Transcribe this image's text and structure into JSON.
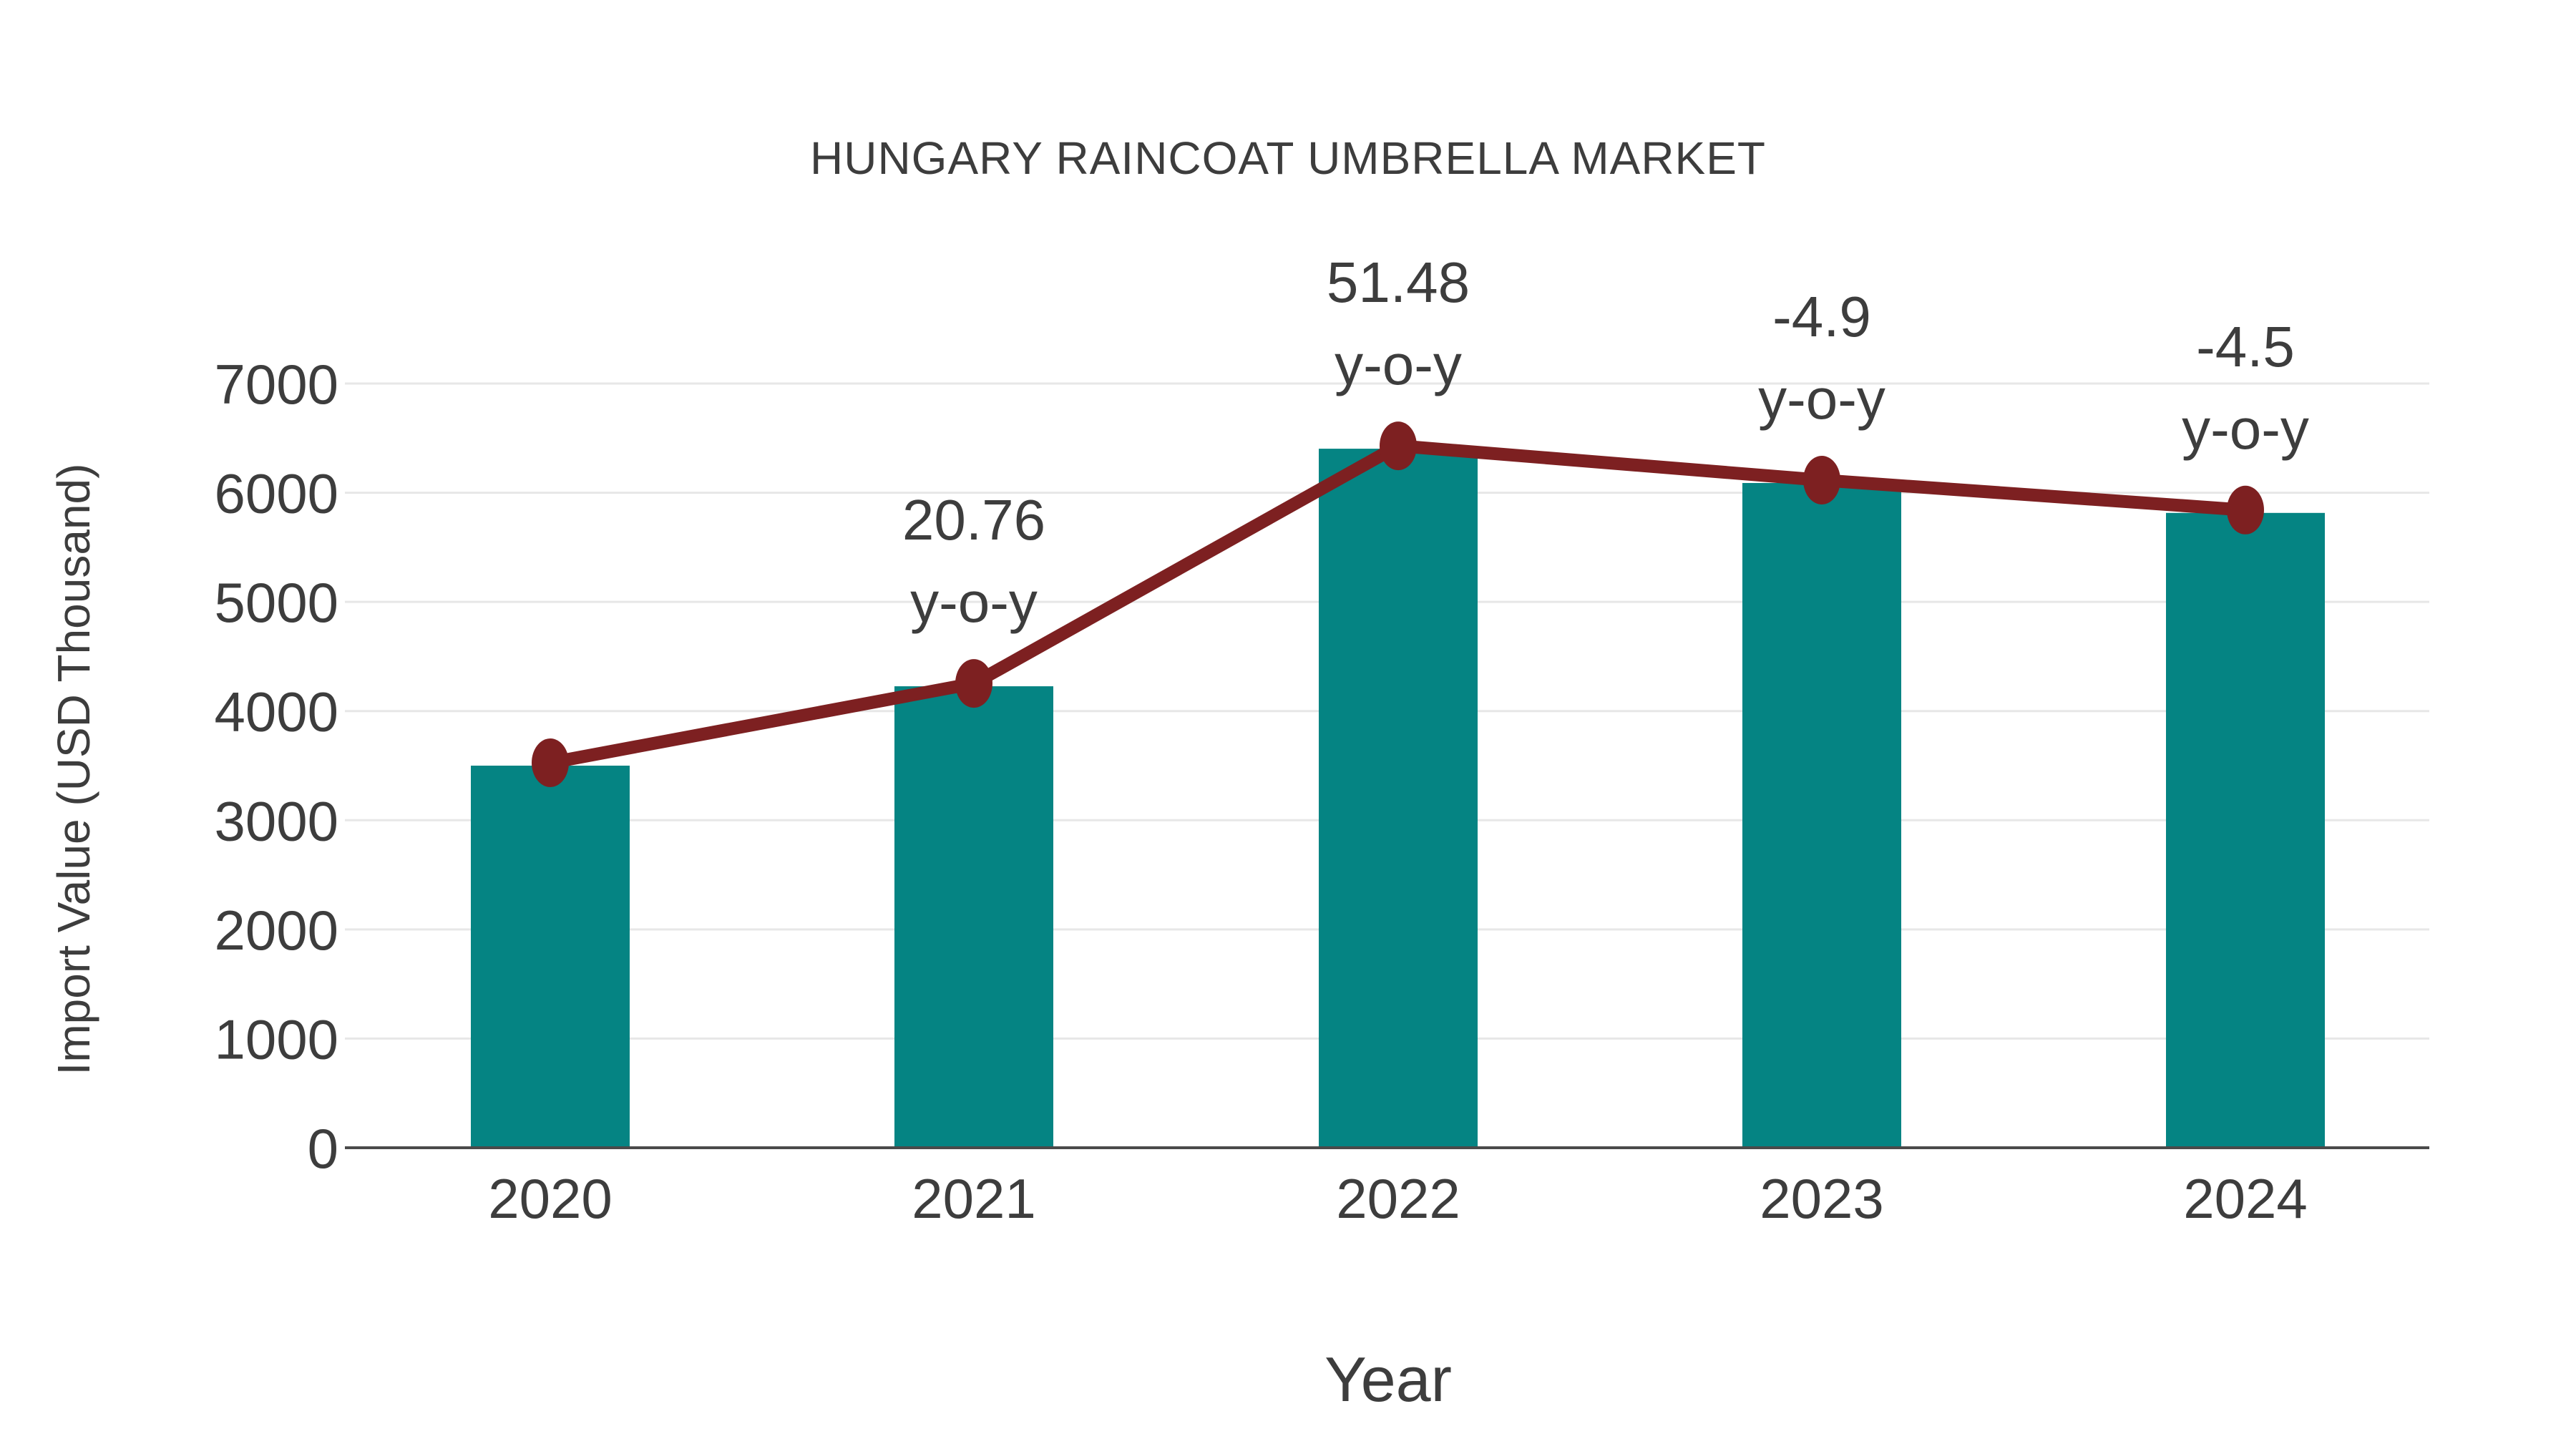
{
  "chart_data": {
    "type": "bar",
    "title": "HUNGARY RAINCOAT UMBRELLA MARKET",
    "xlabel": "Year",
    "ylabel": "Import Value (USD Thousand)",
    "categories": [
      "2020",
      "2021",
      "2022",
      "2023",
      "2024"
    ],
    "series": [
      {
        "name": "Import Value (USD Thousand)",
        "type": "bar",
        "color": "#058483",
        "values": [
          3500,
          4227,
          6403,
          6089,
          5815
        ]
      },
      {
        "name": "y-o-y trend line",
        "type": "line",
        "color": "#7d2021",
        "values": [
          3500,
          4227,
          6403,
          6089,
          5815
        ]
      }
    ],
    "annotations": [
      {
        "category": "2021",
        "value_label": "20.76",
        "suffix_label": "y-o-y"
      },
      {
        "category": "2022",
        "value_label": "51.48",
        "suffix_label": "y-o-y"
      },
      {
        "category": "2023",
        "value_label": "-4.9",
        "suffix_label": "y-o-y"
      },
      {
        "category": "2024",
        "value_label": "-4.5",
        "suffix_label": "y-o-y"
      }
    ],
    "ylim": [
      0,
      7000
    ],
    "ytick_step": 1000,
    "yticks": [
      "0",
      "1000",
      "2000",
      "3000",
      "4000",
      "5000",
      "6000",
      "7000"
    ],
    "grid": "horizontal",
    "legend": "none",
    "colors": {
      "bar": "#058483",
      "line": "#7d2021",
      "text": "#3d3d3d",
      "grid": "#e7e7e7",
      "axis": "#4a4a4a",
      "background": "#ffffff"
    }
  }
}
